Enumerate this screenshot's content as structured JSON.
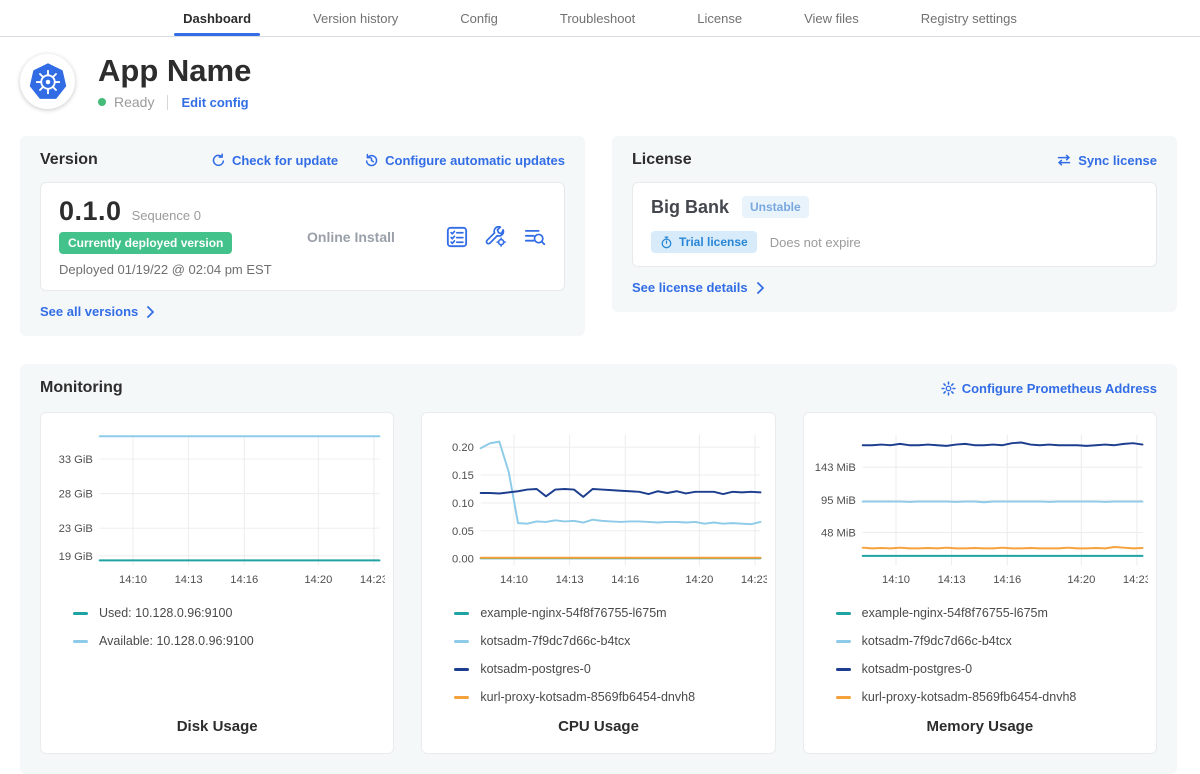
{
  "nav": {
    "tabs": [
      {
        "label": "Dashboard",
        "active": true
      },
      {
        "label": "Version history",
        "active": false
      },
      {
        "label": "Config",
        "active": false
      },
      {
        "label": "Troubleshoot",
        "active": false
      },
      {
        "label": "License",
        "active": false
      },
      {
        "label": "View files",
        "active": false
      },
      {
        "label": "Registry settings",
        "active": false
      }
    ]
  },
  "app_header": {
    "title": "App Name",
    "status": "Ready",
    "edit_config_label": "Edit config"
  },
  "version_card": {
    "title": "Version",
    "check_for_update_label": "Check for update",
    "configure_updates_label": "Configure automatic updates",
    "version": "0.1.0",
    "sequence": "Sequence 0",
    "deployed_badge": "Currently deployed version",
    "deployed_at": "Deployed 01/19/22 @ 02:04 pm EST",
    "install_type": "Online Install",
    "see_all_label": "See all versions",
    "action_icons": [
      "preflight-checks-icon",
      "config-wrench-icon",
      "deploy-logs-icon"
    ]
  },
  "license_card": {
    "title": "License",
    "sync_label": "Sync license",
    "name": "Big Bank",
    "channel_badge": "Unstable",
    "type_badge": "Trial license",
    "expiry": "Does not expire",
    "details_label": "See license details"
  },
  "monitoring": {
    "title": "Monitoring",
    "configure_label": "Configure Prometheus Address"
  },
  "colors": {
    "accent_blue": "#326de6",
    "success_green": "#43c28c",
    "k8s_logo_blue": "#326ce5",
    "chart_teal": "#1fa3a3",
    "chart_light_blue": "#8ecbe9",
    "chart_navy": "#1d3e8f",
    "chart_orange": "#f7a13c"
  },
  "chart_data": [
    {
      "type": "line",
      "title": "Disk Usage",
      "x_domain": [
        8.2,
        23.3
      ],
      "x_ticks": [
        {
          "t": 10,
          "label": "14:10"
        },
        {
          "t": 13,
          "label": "14:13"
        },
        {
          "t": 16,
          "label": "14:16"
        },
        {
          "t": 20,
          "label": "14:20"
        },
        {
          "t": 23,
          "label": "14:23"
        }
      ],
      "y_domain": [
        17.6,
        36.5
      ],
      "y_ticks": [
        {
          "v": 19,
          "label": "19 GiB"
        },
        {
          "v": 23,
          "label": "23 GiB"
        },
        {
          "v": 28,
          "label": "28 GiB"
        },
        {
          "v": 33,
          "label": "33 GiB"
        }
      ],
      "series": [
        {
          "name": "Used: 10.128.0.96:9100",
          "color": "#1fa3a3",
          "values": [
            18.35,
            18.35
          ]
        },
        {
          "name": "Available: 10.128.0.96:9100",
          "color": "#8ecbe9",
          "values": [
            36.3,
            36.3
          ]
        }
      ]
    },
    {
      "type": "line",
      "title": "CPU Usage",
      "x_domain": [
        8.2,
        23.3
      ],
      "x_ticks": [
        {
          "t": 10,
          "label": "14:10"
        },
        {
          "t": 13,
          "label": "14:13"
        },
        {
          "t": 16,
          "label": "14:16"
        },
        {
          "t": 20,
          "label": "14:20"
        },
        {
          "t": 23,
          "label": "14:23"
        }
      ],
      "y_domain": [
        -0.012,
        0.222
      ],
      "y_ticks": [
        {
          "v": 0,
          "label": "0.00"
        },
        {
          "v": 0.05,
          "label": "0.05"
        },
        {
          "v": 0.1,
          "label": "0.10"
        },
        {
          "v": 0.15,
          "label": "0.15"
        },
        {
          "v": 0.2,
          "label": "0.20"
        }
      ],
      "series": [
        {
          "name": "example-nginx-54f8f76755-l675m",
          "color": "#1fa3a3",
          "values": [
            0.001,
            0.001
          ]
        },
        {
          "name": "kotsadm-7f9dc7d66c-b4tcx",
          "color": "#8ecbe9",
          "values": [
            0.198,
            0.207,
            0.21,
            0.156,
            0.064,
            0.063,
            0.067,
            0.066,
            0.069,
            0.067,
            0.068,
            0.065,
            0.07,
            0.068,
            0.067,
            0.066,
            0.067,
            0.067,
            0.066,
            0.065,
            0.066,
            0.066,
            0.065,
            0.066,
            0.063,
            0.065,
            0.063,
            0.064,
            0.063,
            0.062,
            0.066
          ]
        },
        {
          "name": "kotsadm-postgres-0",
          "color": "#1d3e8f",
          "values": [
            0.118,
            0.118,
            0.117,
            0.119,
            0.121,
            0.124,
            0.125,
            0.112,
            0.124,
            0.125,
            0.124,
            0.111,
            0.125,
            0.124,
            0.123,
            0.122,
            0.121,
            0.12,
            0.116,
            0.121,
            0.118,
            0.121,
            0.117,
            0.12,
            0.12,
            0.12,
            0.116,
            0.12,
            0.119,
            0.12,
            0.119
          ]
        },
        {
          "name": "kurl-proxy-kotsadm-8569fb6454-dnvh8",
          "color": "#f7a13c",
          "values": [
            0.002,
            0.002
          ]
        }
      ]
    },
    {
      "type": "line",
      "title": "Memory Usage",
      "x_domain": [
        8.2,
        23.3
      ],
      "x_ticks": [
        {
          "t": 10,
          "label": "14:10"
        },
        {
          "t": 13,
          "label": "14:13"
        },
        {
          "t": 16,
          "label": "14:16"
        },
        {
          "t": 20,
          "label": "14:20"
        },
        {
          "t": 23,
          "label": "14:23"
        }
      ],
      "y_domain": [
        0,
        190
      ],
      "y_ticks": [
        {
          "v": 48,
          "label": "48 MiB"
        },
        {
          "v": 95,
          "label": "95 MiB"
        },
        {
          "v": 143,
          "label": "143 MiB"
        }
      ],
      "series": [
        {
          "name": "example-nginx-54f8f76755-l675m",
          "color": "#1fa3a3",
          "values": [
            14,
            14
          ]
        },
        {
          "name": "kotsadm-7f9dc7d66c-b4tcx",
          "color": "#8ecbe9",
          "values": [
            93,
            93,
            93,
            93,
            93,
            92.5,
            93,
            93,
            93,
            93,
            92.5,
            93,
            93,
            92,
            93,
            93,
            93,
            93,
            93,
            93,
            92.5,
            93,
            93,
            93,
            93,
            93,
            92.5,
            93,
            93,
            93,
            93
          ]
        },
        {
          "name": "kotsadm-postgres-0",
          "color": "#1d3e8f",
          "values": [
            175,
            175,
            176,
            175,
            177,
            175,
            175,
            176,
            175,
            174,
            176,
            177,
            175,
            175,
            176,
            175,
            178,
            179,
            176,
            175,
            176,
            175,
            175,
            175,
            174,
            175,
            176,
            175,
            177,
            178,
            176
          ]
        },
        {
          "name": "kurl-proxy-kotsadm-8569fb6454-dnvh8",
          "color": "#f7a13c",
          "values": [
            26,
            25,
            25.5,
            25,
            26,
            25,
            25,
            25.5,
            25,
            26,
            25,
            25,
            25.5,
            25,
            25,
            26,
            25,
            25,
            25.5,
            25,
            25,
            25,
            26,
            25,
            25,
            25.5,
            25,
            27,
            26,
            25,
            25.5
          ]
        }
      ]
    }
  ]
}
